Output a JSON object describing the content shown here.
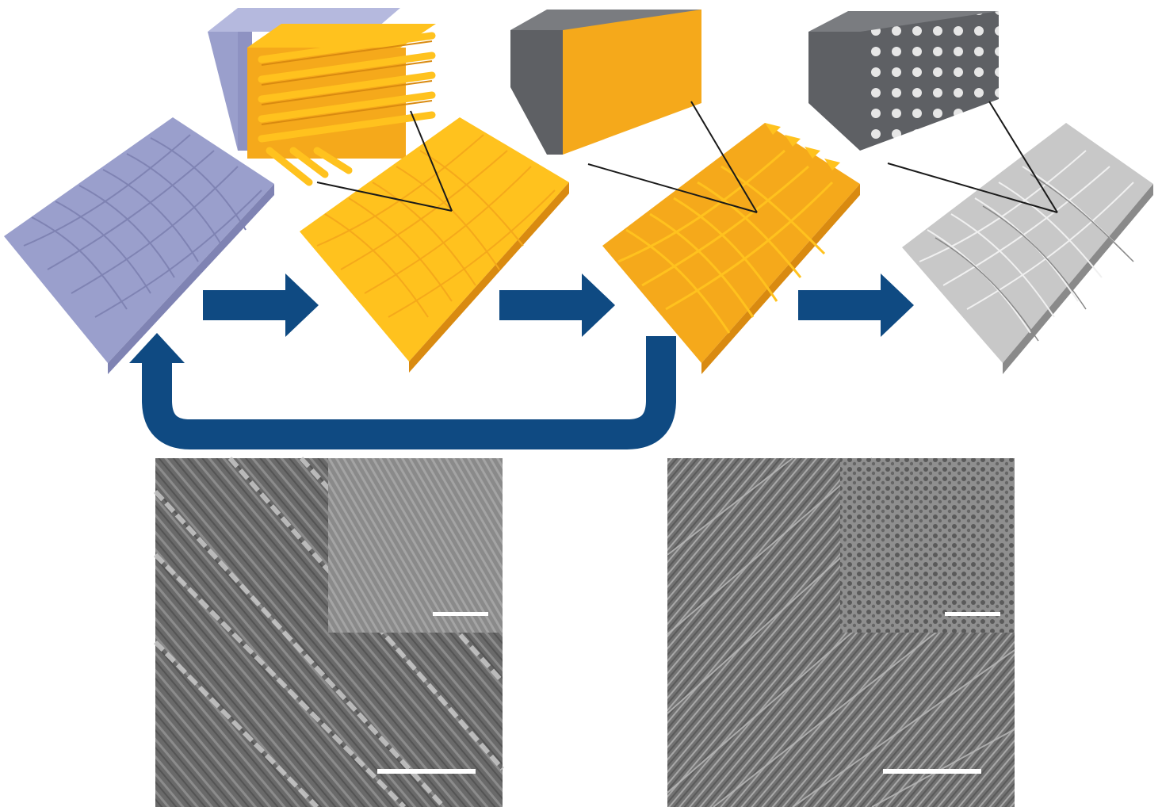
{
  "figure": {
    "colors": {
      "lavender": "#9a9fcc",
      "lavender_dark": "#7f83b3",
      "orange": "#f5a91b",
      "orange_light": "#ffc21e",
      "orange_dark": "#d98a10",
      "grey_block": "#5e6064",
      "silver": "#bcbcbc",
      "arrow_blue": "#0f4a82",
      "sem_grey": "#6e6e6e"
    },
    "stages": [
      {
        "id": "template",
        "color": "lavender"
      },
      {
        "id": "porous-replica",
        "color": "orange",
        "inset": "nanofiber-array"
      },
      {
        "id": "dense-replica",
        "color": "orange",
        "inset": "solid-block"
      },
      {
        "id": "porous-silver-replica",
        "color": "silver",
        "inset": "porous-block"
      }
    ],
    "arrows": [
      {
        "id": "step-1"
      },
      {
        "id": "step-2"
      },
      {
        "id": "step-3"
      },
      {
        "id": "recycle-loop"
      }
    ],
    "micrographs": [
      {
        "id": "sem-left",
        "has_inset": true,
        "scale_bars": 2
      },
      {
        "id": "sem-right",
        "has_inset": true,
        "scale_bars": 2
      }
    ]
  }
}
